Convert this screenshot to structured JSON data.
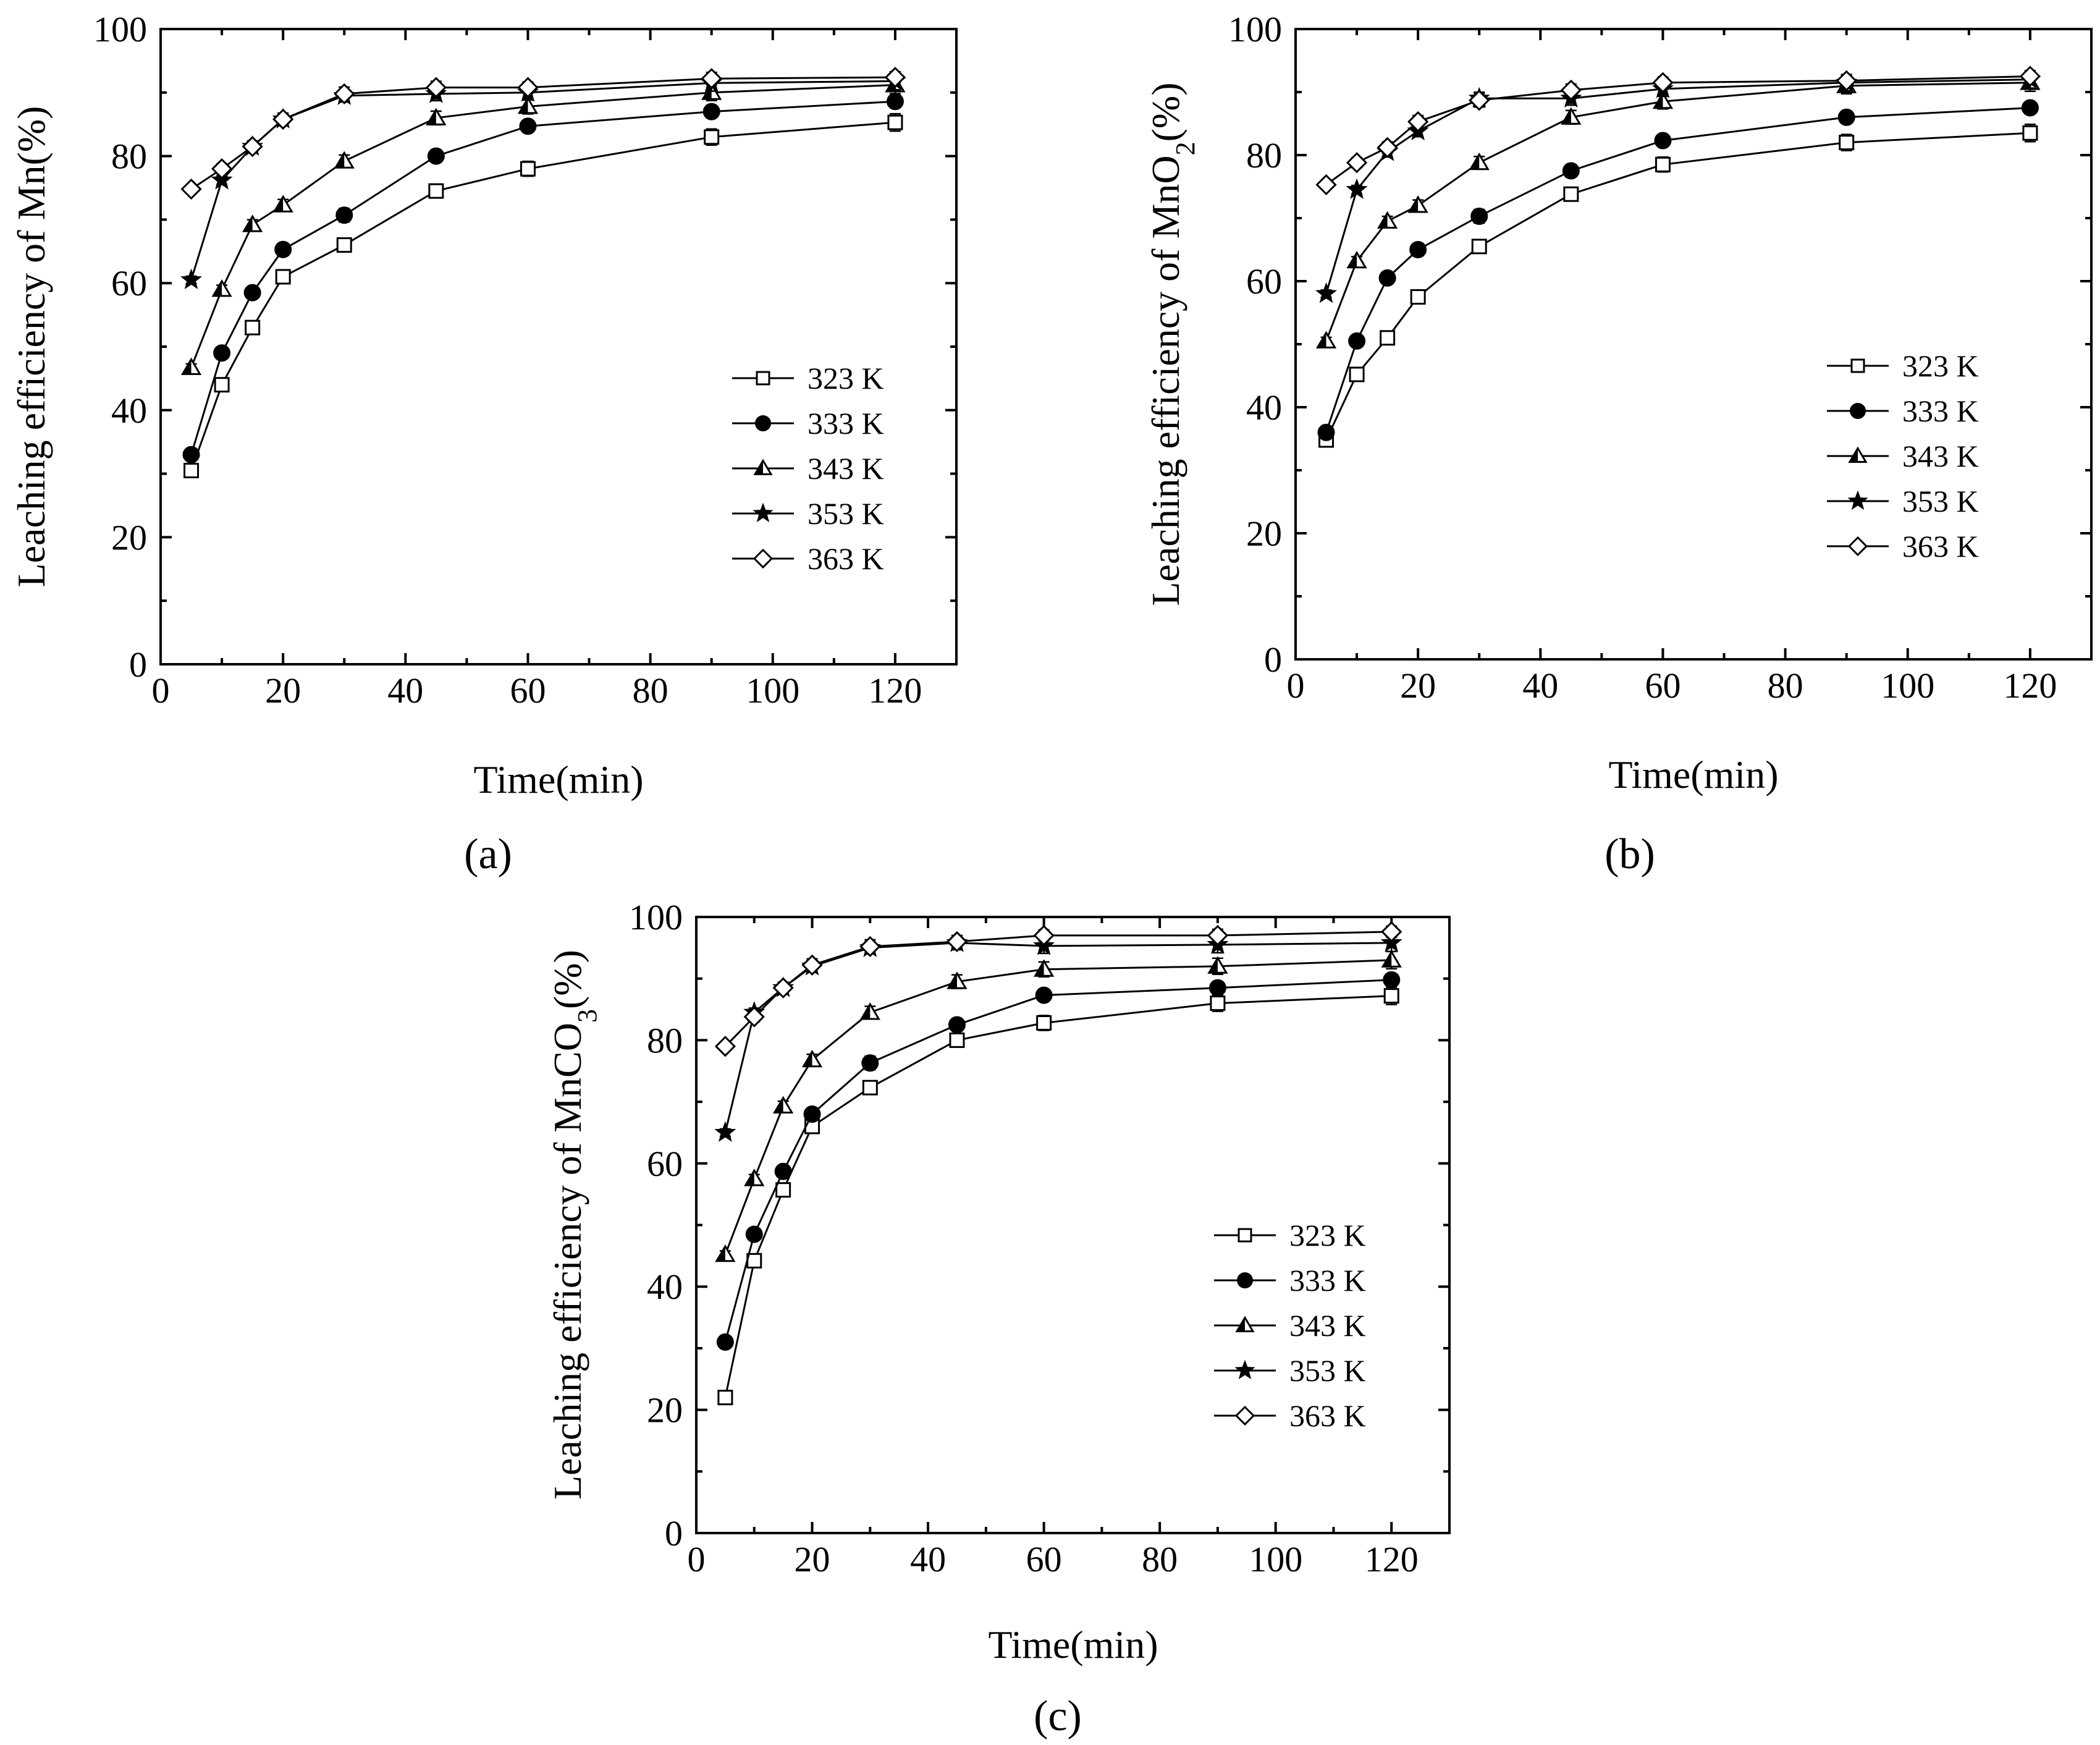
{
  "chart_data": [
    {
      "type": "line",
      "panel_label": "(a)",
      "ylabel": "Leaching efficiency of Mn(%)",
      "xlabel": "Time(min)",
      "xlim": [
        0,
        130
      ],
      "ylim": [
        0,
        100
      ],
      "x_ticks": [
        0,
        20,
        40,
        60,
        80,
        100,
        120
      ],
      "y_ticks": [
        0,
        20,
        40,
        60,
        80,
        100
      ],
      "x": [
        5,
        10,
        15,
        20,
        30,
        45,
        60,
        90,
        120
      ],
      "series": [
        {
          "name": "323 K",
          "marker": "open-square",
          "values": [
            30.5,
            44,
            53,
            61,
            66,
            74.5,
            78,
            83,
            85.3
          ]
        },
        {
          "name": "333 K",
          "marker": "filled-circle",
          "values": [
            33,
            49,
            58.5,
            65.3,
            70.7,
            80,
            84.7,
            87,
            88.6
          ]
        },
        {
          "name": "343 K",
          "marker": "filled-triangle",
          "values": [
            46.7,
            59,
            69.2,
            72.3,
            79.2,
            86,
            87.8,
            90,
            91.2
          ]
        },
        {
          "name": "353 K",
          "marker": "filled-star",
          "values": [
            60.5,
            76.2,
            81.5,
            85.8,
            89.5,
            89.8,
            90,
            91.5,
            91.8
          ]
        },
        {
          "name": "363 K",
          "marker": "open-diamond",
          "values": [
            74.8,
            78,
            81.5,
            85.8,
            89.8,
            90.8,
            90.8,
            92.2,
            92.4
          ]
        }
      ]
    },
    {
      "type": "line",
      "panel_label": "(b)",
      "ylabel": "Leaching efficiency of MnO2(%)",
      "xlabel": "Time(min)",
      "xlim": [
        0,
        130
      ],
      "ylim": [
        0,
        100
      ],
      "x_ticks": [
        0,
        20,
        40,
        60,
        80,
        100,
        120
      ],
      "y_ticks": [
        0,
        20,
        40,
        60,
        80,
        100
      ],
      "x": [
        5,
        10,
        15,
        20,
        30,
        45,
        60,
        90,
        120
      ],
      "series": [
        {
          "name": "323 K",
          "marker": "open-square",
          "values": [
            34.8,
            45.2,
            51,
            57.5,
            65.5,
            73.8,
            78.5,
            82,
            83.5
          ]
        },
        {
          "name": "333 K",
          "marker": "filled-circle",
          "values": [
            36,
            50.5,
            60.5,
            65,
            70.3,
            77.5,
            82.3,
            86,
            87.5
          ]
        },
        {
          "name": "343 K",
          "marker": "filled-triangle",
          "values": [
            50.5,
            63.2,
            69.5,
            72,
            78.8,
            86,
            88.5,
            91,
            91.5
          ]
        },
        {
          "name": "353 K",
          "marker": "filled-star",
          "values": [
            58,
            74.5,
            80.5,
            83.8,
            89,
            89,
            90.5,
            91.5,
            92
          ]
        },
        {
          "name": "363 K",
          "marker": "open-diamond",
          "values": [
            75.3,
            78.8,
            81.2,
            85.3,
            88.7,
            90.3,
            91.5,
            91.8,
            92.5
          ]
        }
      ]
    },
    {
      "type": "line",
      "panel_label": "(c)",
      "ylabel": "Leaching efficiency of MnCO3(%)",
      "xlabel": "Time(min)",
      "xlim": [
        0,
        130
      ],
      "ylim": [
        0,
        100
      ],
      "x_ticks": [
        0,
        20,
        40,
        60,
        80,
        100,
        120
      ],
      "y_ticks": [
        0,
        20,
        40,
        60,
        80,
        100
      ],
      "x": [
        5,
        10,
        15,
        20,
        30,
        45,
        60,
        90,
        120
      ],
      "series": [
        {
          "name": "323 K",
          "marker": "open-square",
          "values": [
            22,
            44.2,
            55.7,
            66,
            72.3,
            80,
            82.8,
            86,
            87.2
          ]
        },
        {
          "name": "333 K",
          "marker": "filled-circle",
          "values": [
            31,
            48.5,
            58.7,
            68,
            76.3,
            82.5,
            87.3,
            88.5,
            89.8
          ]
        },
        {
          "name": "343 K",
          "marker": "filled-triangle",
          "values": [
            45.2,
            57.5,
            69.3,
            76.8,
            84.5,
            89.5,
            91.5,
            92,
            93
          ]
        },
        {
          "name": "353 K",
          "marker": "filled-star",
          "values": [
            65,
            84.5,
            88.5,
            92,
            95,
            95.8,
            95.3,
            95.5,
            95.8
          ]
        },
        {
          "name": "363 K",
          "marker": "open-diamond",
          "values": [
            79,
            83.8,
            88.5,
            92.2,
            95.2,
            96,
            97,
            97,
            97.6
          ]
        }
      ]
    }
  ]
}
